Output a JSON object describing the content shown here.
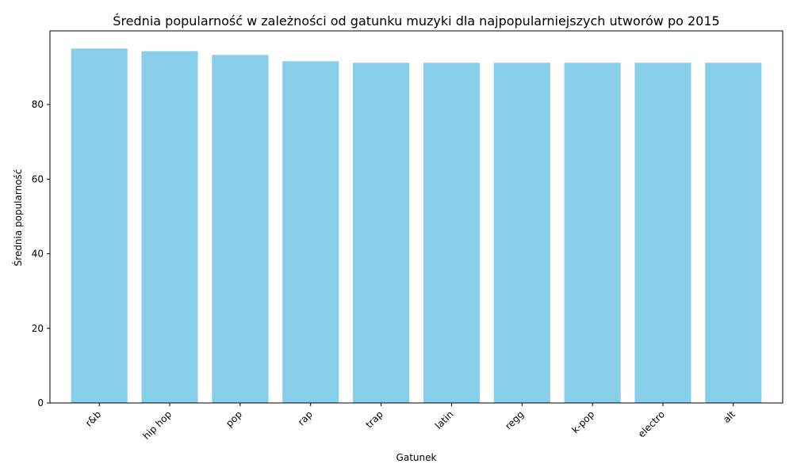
{
  "chart_data": {
    "type": "bar",
    "title": "Średnia popularność w zależności od gatunku muzyki dla najpopularniejszych utworów po 2015",
    "xlabel": "Gatunek",
    "ylabel": "Średnia popularność",
    "categories": [
      "r&b",
      "hip hop",
      "pop",
      "rap",
      "trap",
      "latin",
      "regg",
      "k-pop",
      "electro",
      "alt"
    ],
    "values": [
      95.0,
      94.3,
      93.3,
      91.6,
      91.2,
      91.2,
      91.2,
      91.2,
      91.2,
      91.2
    ],
    "ylim": [
      0,
      99.75
    ],
    "yticks": [
      0,
      20,
      40,
      60,
      80
    ],
    "bar_color": "#87ceeb",
    "grid": false,
    "legend": "none"
  }
}
